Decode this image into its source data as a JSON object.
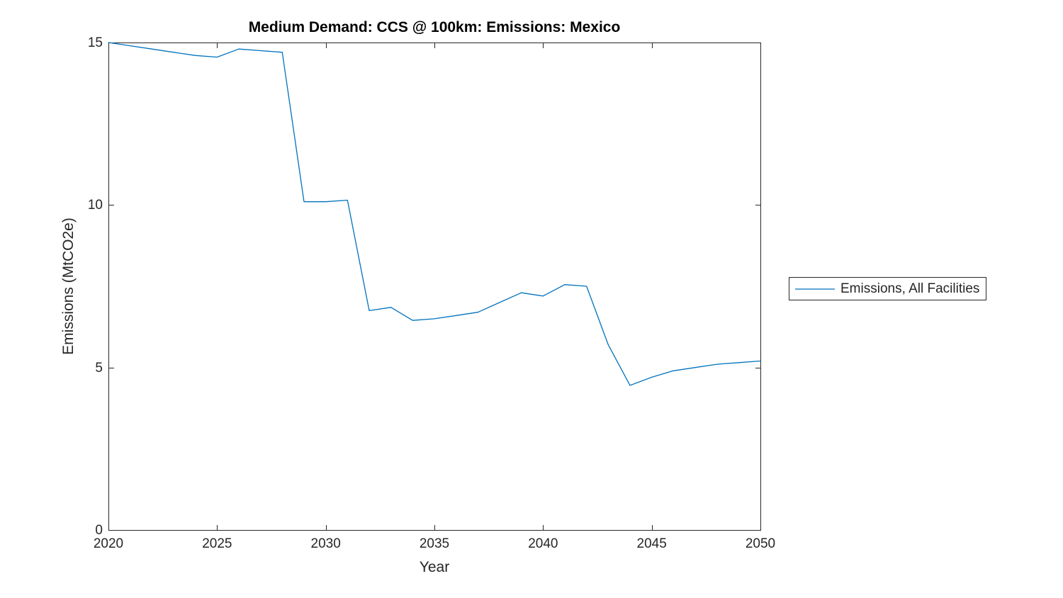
{
  "figure": {
    "background": "#ffffff",
    "axis_color": "#262626"
  },
  "chart_data": {
    "type": "line",
    "title": "Medium Demand: CCS @ 100km: Emissions: Mexico",
    "xlabel": "Year",
    "ylabel": "Emissions (MtCO2e)",
    "xlim": [
      2020,
      2050
    ],
    "ylim": [
      0,
      15
    ],
    "xticks": [
      2020,
      2025,
      2030,
      2035,
      2040,
      2045,
      2050
    ],
    "yticks": [
      0,
      5,
      10,
      15
    ],
    "grid": false,
    "legend": {
      "position": "outside-right",
      "entries": [
        "Emissions, All Facilities"
      ]
    },
    "series": [
      {
        "name": "Emissions, All Facilities",
        "color": "#0072BD",
        "x": [
          2020,
          2021,
          2022,
          2023,
          2024,
          2025,
          2026,
          2027,
          2028,
          2029,
          2030,
          2031,
          2032,
          2033,
          2034,
          2035,
          2036,
          2037,
          2038,
          2039,
          2040,
          2041,
          2042,
          2043,
          2044,
          2045,
          2046,
          2047,
          2048,
          2049,
          2050
        ],
        "values": [
          15.0,
          14.9,
          14.8,
          14.7,
          14.6,
          14.55,
          14.8,
          14.75,
          14.7,
          10.1,
          10.1,
          10.15,
          6.75,
          6.85,
          6.45,
          6.5,
          6.6,
          6.7,
          7.0,
          7.3,
          7.2,
          7.55,
          7.5,
          5.7,
          4.45,
          4.7,
          4.9,
          5.0,
          5.1,
          5.15,
          5.2
        ]
      }
    ]
  }
}
